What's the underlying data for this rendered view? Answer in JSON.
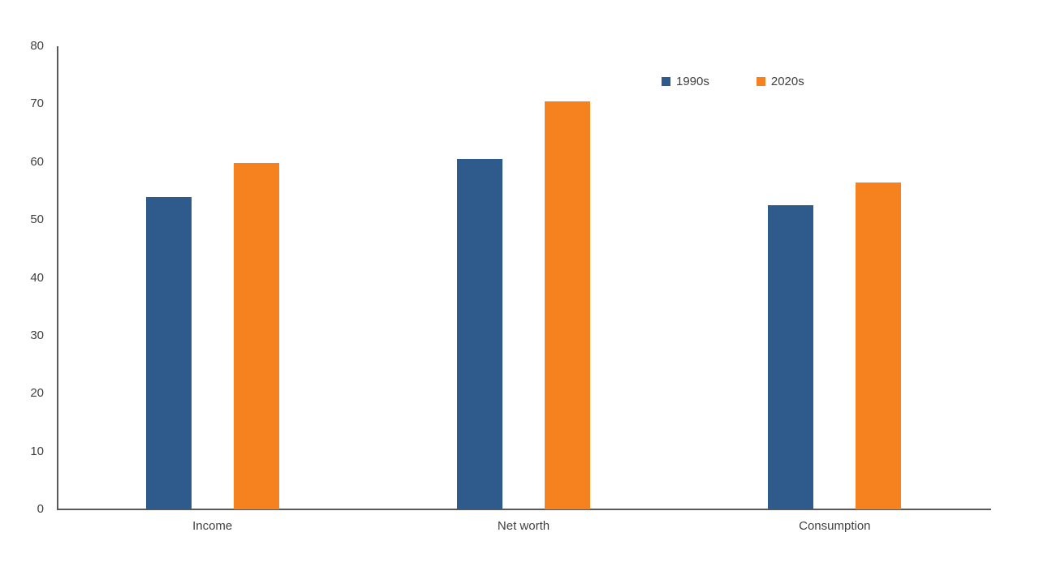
{
  "chart_data": {
    "type": "bar",
    "title": "",
    "xlabel": "",
    "ylabel": "",
    "categories": [
      "Income",
      "Net worth",
      "Consumption"
    ],
    "series": [
      {
        "name": "1990s",
        "color": "#2E5B8B",
        "values": [
          54,
          60.5,
          52.5
        ]
      },
      {
        "name": "2020s",
        "color": "#F5821F",
        "values": [
          59.8,
          70.5,
          56.5
        ]
      }
    ],
    "ylim": [
      0,
      80
    ],
    "yticks": [
      0,
      10,
      20,
      30,
      40,
      50,
      60,
      70,
      80
    ],
    "grid": false,
    "legend_position": "top-right",
    "axis_color": "#595959",
    "label_color": "#404040"
  }
}
